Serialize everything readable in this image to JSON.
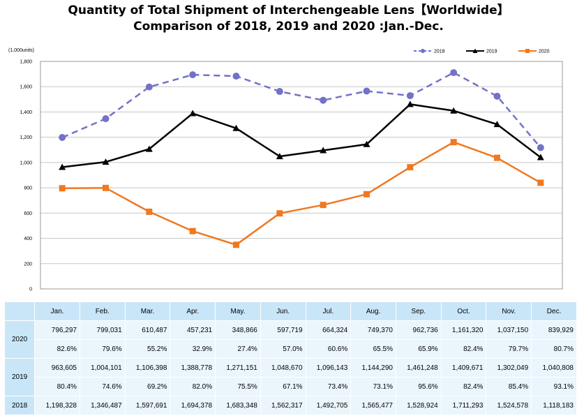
{
  "title_line1": "Quantity of Total Shipment of Interchengeable Lens【Worldwide】",
  "title_line2": "Comparison of 2018, 2019 and 2020 :Jan.-Dec.",
  "colors": {
    "s2018": "#7272c8",
    "s2019": "#000000",
    "s2020": "#f07820",
    "table_header": "#c9e6f8",
    "table_cell": "#eaf5fc",
    "grid": "#c8c8c8"
  },
  "chart_data": {
    "type": "line",
    "unit_label": "(1,000units)",
    "categories": [
      "Jan.",
      "Feb.",
      "Mar.",
      "Apr.",
      "May.",
      "Jun.",
      "Jul.",
      "Aug.",
      "Sep.",
      "Oct.",
      "Nov.",
      "Dec."
    ],
    "ylim": [
      0,
      1800
    ],
    "yticks": [
      "0",
      "200",
      "400",
      "600",
      "800",
      "1,000",
      "1,200",
      "1,400",
      "1,600",
      "1,800"
    ],
    "grid": true,
    "legend_position": "top-right",
    "series": [
      {
        "name": "2018",
        "marker": "circle",
        "dash": true,
        "values": [
          1198.328,
          1346.487,
          1597.691,
          1694.378,
          1683.348,
          1562.317,
          1492.705,
          1565.477,
          1528.924,
          1711.293,
          1524.578,
          1118.183
        ]
      },
      {
        "name": "2019",
        "marker": "triangle",
        "dash": false,
        "values": [
          963.605,
          1004.101,
          1106.398,
          1388.778,
          1271.151,
          1048.67,
          1096.143,
          1144.29,
          1461.248,
          1409.671,
          1302.049,
          1040.808
        ]
      },
      {
        "name": "2020",
        "marker": "square",
        "dash": false,
        "values": [
          796.297,
          799.031,
          610.487,
          457.231,
          348.866,
          597.719,
          664.324,
          749.37,
          962.736,
          1161.32,
          1037.15,
          839.929
        ]
      }
    ]
  },
  "table": {
    "months": [
      "Jan.",
      "Feb.",
      "Mar.",
      "Apr.",
      "May.",
      "Jun.",
      "Jul.",
      "Aug.",
      "Sep.",
      "Oct.",
      "Nov.",
      "Dec."
    ],
    "rows": [
      {
        "year": "2020",
        "values": [
          "796,297",
          "799,031",
          "610,487",
          "457,231",
          "348,866",
          "597,719",
          "664,324",
          "749,370",
          "962,736",
          "1,161,320",
          "1,037,150",
          "839,929"
        ],
        "percents": [
          "82.6%",
          "79.6%",
          "55.2%",
          "32.9%",
          "27.4%",
          "57.0%",
          "60.6%",
          "65.5%",
          "65.9%",
          "82.4%",
          "79.7%",
          "80.7%"
        ]
      },
      {
        "year": "2019",
        "values": [
          "963,605",
          "1,004,101",
          "1,106,398",
          "1,388,778",
          "1,271,151",
          "1,048,670",
          "1,096,143",
          "1,144,290",
          "1,461,248",
          "1,409,671",
          "1,302,049",
          "1,040,808"
        ],
        "percents": [
          "80.4%",
          "74.6%",
          "69.2%",
          "82.0%",
          "75.5%",
          "67.1%",
          "73.4%",
          "73.1%",
          "95.6%",
          "82.4%",
          "85.4%",
          "93.1%"
        ]
      },
      {
        "year": "2018",
        "values": [
          "1,198,328",
          "1,346,487",
          "1,597,691",
          "1,694,378",
          "1,683,348",
          "1,562,317",
          "1,492,705",
          "1,565,477",
          "1,528,924",
          "1,711,293",
          "1,524,578",
          "1,118,183"
        ],
        "percents": []
      }
    ]
  }
}
